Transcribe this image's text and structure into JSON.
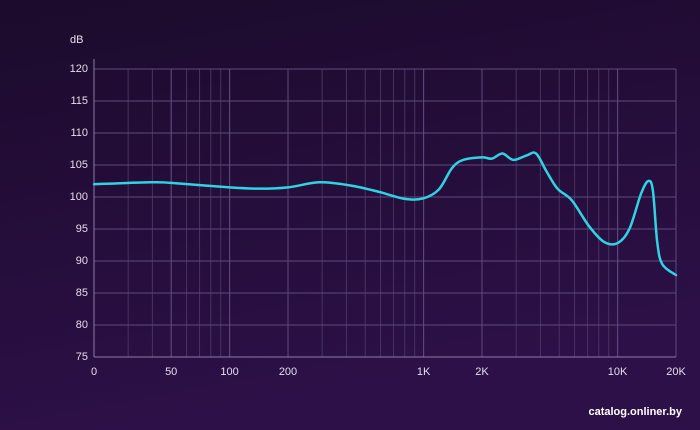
{
  "chart_data": {
    "type": "line",
    "y_label": "dB",
    "watermark": "catalog.onliner.by",
    "xscale": "log",
    "grid": true,
    "xlim": [
      20,
      20000
    ],
    "ylim": [
      75,
      120
    ],
    "xticks": [
      {
        "value": 20,
        "label": "0"
      },
      50,
      100,
      200,
      {
        "value": 1000,
        "label": "1K"
      },
      {
        "value": 2000,
        "label": "2K"
      },
      {
        "value": 10000,
        "label": "10K"
      },
      {
        "value": 20000,
        "label": "20K"
      }
    ],
    "yticks": [
      75,
      80,
      85,
      90,
      95,
      100,
      105,
      110,
      115,
      120
    ],
    "x": [
      20,
      39,
      50,
      100,
      143,
      200,
      290,
      420,
      590,
      800,
      1000,
      1200,
      1400,
      1600,
      2000,
      2250,
      2550,
      2900,
      3400,
      3800,
      4300,
      4900,
      5800,
      7100,
      8500,
      10000,
      11500,
      13200,
      14400,
      15200,
      16000,
      17000,
      20000
    ],
    "series": [
      {
        "name": "dB",
        "color": "#2fd3e2",
        "values": [
          102,
          102.3,
          102.2,
          101.5,
          101.3,
          101.5,
          102.3,
          101.8,
          100.8,
          99.7,
          99.8,
          101.2,
          104.5,
          105.8,
          106.2,
          106,
          106.8,
          105.8,
          106.5,
          106.8,
          104,
          101.3,
          99.5,
          95.5,
          93,
          92.8,
          95,
          100.5,
          102.5,
          101,
          93,
          89.5,
          87.8
        ]
      }
    ]
  }
}
